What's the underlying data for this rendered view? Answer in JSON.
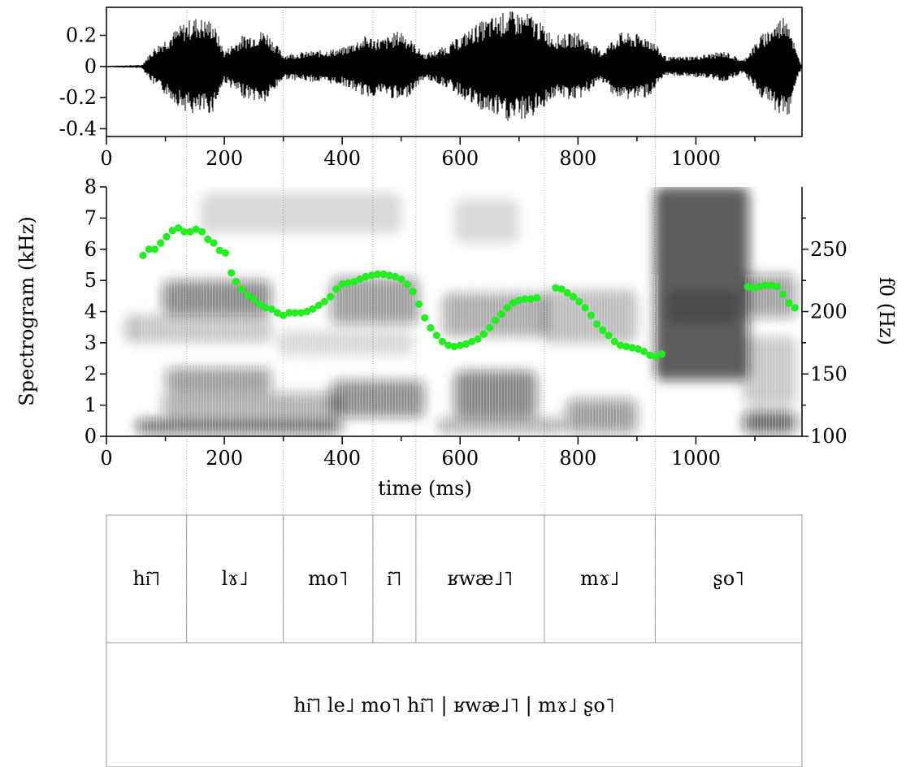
{
  "chart_data": [
    {
      "type": "line",
      "panel": "waveform",
      "ylim": [
        -0.45,
        0.38
      ],
      "xlim": [
        0,
        1180
      ],
      "yticks": [
        {
          "value": 0.2,
          "label": "0.2"
        },
        {
          "value": 0,
          "label": "0"
        },
        {
          "value": -0.2,
          "label": "-0.2"
        },
        {
          "value": -0.4,
          "label": "-0.4"
        }
      ],
      "xticks": [
        {
          "value": 0,
          "label": "0"
        },
        {
          "value": 200,
          "label": "200"
        },
        {
          "value": 400,
          "label": "400"
        },
        {
          "value": 600,
          "label": "600"
        },
        {
          "value": 800,
          "label": "800"
        },
        {
          "value": 1000,
          "label": "1000"
        }
      ],
      "envelope": [
        {
          "t": 0,
          "amp": 0.005
        },
        {
          "t": 60,
          "amp": 0.01
        },
        {
          "t": 80,
          "amp": 0.12
        },
        {
          "t": 130,
          "amp": 0.28
        },
        {
          "t": 150,
          "amp": 0.32
        },
        {
          "t": 180,
          "amp": 0.3
        },
        {
          "t": 200,
          "amp": 0.1
        },
        {
          "t": 230,
          "amp": 0.2
        },
        {
          "t": 270,
          "amp": 0.24
        },
        {
          "t": 300,
          "amp": 0.08
        },
        {
          "t": 350,
          "amp": 0.1
        },
        {
          "t": 400,
          "amp": 0.12
        },
        {
          "t": 440,
          "amp": 0.2
        },
        {
          "t": 470,
          "amp": 0.18
        },
        {
          "t": 500,
          "amp": 0.24
        },
        {
          "t": 540,
          "amp": 0.08
        },
        {
          "t": 580,
          "amp": 0.14
        },
        {
          "t": 630,
          "amp": 0.28
        },
        {
          "t": 680,
          "amp": 0.36
        },
        {
          "t": 720,
          "amp": 0.34
        },
        {
          "t": 760,
          "amp": 0.2
        },
        {
          "t": 800,
          "amp": 0.22
        },
        {
          "t": 840,
          "amp": 0.1
        },
        {
          "t": 870,
          "amp": 0.22
        },
        {
          "t": 920,
          "amp": 0.2
        },
        {
          "t": 950,
          "amp": 0.06
        },
        {
          "t": 1000,
          "amp": 0.07
        },
        {
          "t": 1050,
          "amp": 0.1
        },
        {
          "t": 1080,
          "amp": 0.04
        },
        {
          "t": 1110,
          "amp": 0.2
        },
        {
          "t": 1140,
          "amp": 0.3
        },
        {
          "t": 1155,
          "amp": 0.36
        },
        {
          "t": 1170,
          "amp": 0.1
        },
        {
          "t": 1180,
          "amp": 0.005
        }
      ]
    },
    {
      "type": "scatter",
      "panel": "spectrogram",
      "ylabel": "Spectrogram (kHz)",
      "xlabel": "time (ms)",
      "y2label": "f0 (Hz)",
      "ylim": [
        0,
        8
      ],
      "y2lim": [
        100,
        300
      ],
      "xlim": [
        0,
        1180
      ],
      "yticks": [
        {
          "value": 0,
          "label": "0"
        },
        {
          "value": 1,
          "label": "1"
        },
        {
          "value": 2,
          "label": "2"
        },
        {
          "value": 3,
          "label": "3"
        },
        {
          "value": 4,
          "label": "4"
        },
        {
          "value": 5,
          "label": "5"
        },
        {
          "value": 6,
          "label": "6"
        },
        {
          "value": 7,
          "label": "7"
        },
        {
          "value": 8,
          "label": "8"
        }
      ],
      "y2ticks": [
        {
          "value": 100,
          "label": "100"
        },
        {
          "value": 150,
          "label": "150"
        },
        {
          "value": 200,
          "label": "200"
        },
        {
          "value": 250,
          "label": "250"
        }
      ],
      "xticks": [
        {
          "value": 0,
          "label": "0"
        },
        {
          "value": 200,
          "label": "200"
        },
        {
          "value": 400,
          "label": "400"
        },
        {
          "value": 600,
          "label": "600"
        },
        {
          "value": 800,
          "label": "800"
        },
        {
          "value": 1000,
          "label": "1000"
        }
      ],
      "f0_color": "#22ee22",
      "f0_points": [
        [
          62,
          245
        ],
        [
          72,
          250
        ],
        [
          82,
          250
        ],
        [
          92,
          255
        ],
        [
          102,
          260
        ],
        [
          112,
          265
        ],
        [
          122,
          267
        ],
        [
          132,
          264
        ],
        [
          142,
          264
        ],
        [
          152,
          266
        ],
        [
          162,
          264
        ],
        [
          172,
          258
        ],
        [
          182,
          255
        ],
        [
          192,
          249
        ],
        [
          202,
          247
        ],
        [
          212,
          231
        ],
        [
          220,
          224
        ],
        [
          230,
          218
        ],
        [
          240,
          213
        ],
        [
          250,
          210
        ],
        [
          260,
          206
        ],
        [
          270,
          203
        ],
        [
          280,
          202
        ],
        [
          290,
          199
        ],
        [
          300,
          197
        ],
        [
          310,
          199
        ],
        [
          320,
          199
        ],
        [
          330,
          199
        ],
        [
          340,
          200
        ],
        [
          350,
          202
        ],
        [
          360,
          205
        ],
        [
          370,
          208
        ],
        [
          380,
          212
        ],
        [
          390,
          218
        ],
        [
          400,
          222
        ],
        [
          410,
          223
        ],
        [
          420,
          224
        ],
        [
          430,
          226
        ],
        [
          440,
          228
        ],
        [
          450,
          229
        ],
        [
          460,
          230
        ],
        [
          470,
          230
        ],
        [
          480,
          229
        ],
        [
          490,
          228
        ],
        [
          500,
          226
        ],
        [
          510,
          222
        ],
        [
          520,
          216
        ],
        [
          530,
          206
        ],
        [
          540,
          195
        ],
        [
          550,
          187
        ],
        [
          560,
          181
        ],
        [
          570,
          176
        ],
        [
          580,
          173
        ],
        [
          590,
          172
        ],
        [
          600,
          173
        ],
        [
          610,
          174
        ],
        [
          620,
          176
        ],
        [
          630,
          178
        ],
        [
          640,
          182
        ],
        [
          650,
          187
        ],
        [
          660,
          193
        ],
        [
          670,
          198
        ],
        [
          680,
          203
        ],
        [
          690,
          207
        ],
        [
          700,
          209
        ],
        [
          710,
          210
        ],
        [
          720,
          210
        ],
        [
          730,
          211
        ],
        [
          762,
          219
        ],
        [
          772,
          218
        ],
        [
          782,
          215
        ],
        [
          792,
          212
        ],
        [
          802,
          208
        ],
        [
          812,
          203
        ],
        [
          822,
          197
        ],
        [
          832,
          190
        ],
        [
          842,
          185
        ],
        [
          852,
          181
        ],
        [
          862,
          176
        ],
        [
          872,
          173
        ],
        [
          882,
          172
        ],
        [
          892,
          171
        ],
        [
          902,
          170
        ],
        [
          912,
          168
        ],
        [
          922,
          165
        ],
        [
          932,
          164
        ],
        [
          942,
          166
        ],
        [
          1088,
          220
        ],
        [
          1098,
          219
        ],
        [
          1108,
          220
        ],
        [
          1118,
          221
        ],
        [
          1128,
          221
        ],
        [
          1138,
          220
        ],
        [
          1148,
          214
        ],
        [
          1158,
          207
        ],
        [
          1168,
          203
        ]
      ],
      "energy_blobs": [
        {
          "t0": 95,
          "t1": 280,
          "f0": 3.9,
          "f1": 5.0,
          "o": 0.5
        },
        {
          "t0": 30,
          "t1": 280,
          "f0": 3.0,
          "f1": 3.9,
          "o": 0.22
        },
        {
          "t0": 100,
          "t1": 280,
          "f0": 1.4,
          "f1": 2.2,
          "o": 0.42
        },
        {
          "t0": 95,
          "t1": 400,
          "f0": 0.6,
          "f1": 1.4,
          "o": 0.35
        },
        {
          "t0": 50,
          "t1": 400,
          "f0": 0.1,
          "f1": 0.55,
          "o": 0.62
        },
        {
          "t0": 380,
          "t1": 530,
          "f0": 3.6,
          "f1": 5.1,
          "o": 0.42
        },
        {
          "t0": 380,
          "t1": 540,
          "f0": 0.6,
          "f1": 1.8,
          "o": 0.48
        },
        {
          "t0": 290,
          "t1": 520,
          "f0": 2.6,
          "f1": 3.4,
          "o": 0.15
        },
        {
          "t0": 570,
          "t1": 750,
          "f0": 3.2,
          "f1": 4.6,
          "o": 0.32
        },
        {
          "t0": 590,
          "t1": 730,
          "f0": 0.6,
          "f1": 2.1,
          "o": 0.52
        },
        {
          "t0": 560,
          "t1": 780,
          "f0": 0.1,
          "f1": 0.6,
          "o": 0.3
        },
        {
          "t0": 590,
          "t1": 700,
          "f0": 6.2,
          "f1": 7.6,
          "o": 0.14
        },
        {
          "t0": 740,
          "t1": 900,
          "f0": 3.0,
          "f1": 4.7,
          "o": 0.26
        },
        {
          "t0": 780,
          "t1": 900,
          "f0": 0.1,
          "f1": 1.2,
          "o": 0.42
        },
        {
          "t0": 160,
          "t1": 500,
          "f0": 6.5,
          "f1": 7.8,
          "o": 0.15
        },
        {
          "t0": 930,
          "t1": 1090,
          "f0": 1.8,
          "f1": 8.0,
          "o": 0.68
        },
        {
          "t0": 950,
          "t1": 1070,
          "f0": 3.6,
          "f1": 4.7,
          "o": 0.25
        },
        {
          "t0": 1080,
          "t1": 1170,
          "f0": 3.8,
          "f1": 5.2,
          "o": 0.4
        },
        {
          "t0": 1080,
          "t1": 1170,
          "f0": 0.1,
          "f1": 0.8,
          "o": 0.62
        },
        {
          "t0": 1080,
          "t1": 1170,
          "f0": 1.0,
          "f1": 3.2,
          "o": 0.22
        }
      ]
    }
  ],
  "boundaries_ms": [
    136,
    300,
    452,
    525,
    743,
    931
  ],
  "segments": [
    {
      "t0": 0,
      "t1": 136,
      "label": "hi͂˥"
    },
    {
      "t0": 136,
      "t1": 300,
      "label": "lɤ˩"
    },
    {
      "t0": 300,
      "t1": 452,
      "label": "mo˥"
    },
    {
      "t0": 452,
      "t1": 525,
      "label": "i͂˥"
    },
    {
      "t0": 525,
      "t1": 743,
      "label": "ʁwæ˩˥"
    },
    {
      "t0": 743,
      "t1": 931,
      "label": "mɤ˩"
    },
    {
      "t0": 931,
      "t1": 1180,
      "label": "ʂo˥"
    }
  ],
  "phrase": "hi͂˥ le˩ mo˥ hi͂˥ | ʁwæ˩˥ | mɤ˩ ʂo˥"
}
